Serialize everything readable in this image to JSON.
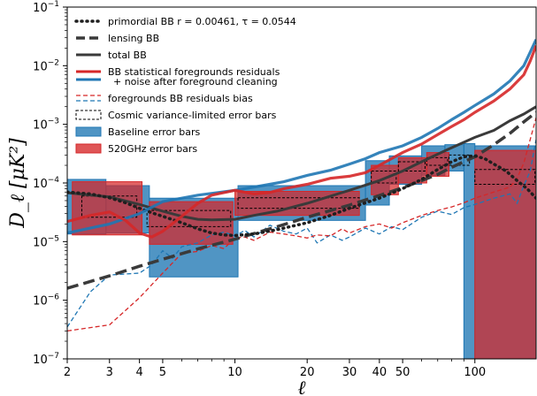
{
  "chart_data": {
    "type": "line",
    "xlabel": "ℓ",
    "ylabel": "D_ℓ [μK²]",
    "xscale": "log",
    "yscale": "log",
    "xlim": [
      2,
      180
    ],
    "ylim": [
      1e-07,
      0.1
    ],
    "x_ticks": [
      {
        "v": 2,
        "label": "2"
      },
      {
        "v": 3,
        "label": "3"
      },
      {
        "v": 4,
        "label": "4"
      },
      {
        "v": 5,
        "label": "5"
      },
      {
        "v": 10,
        "label": "10"
      },
      {
        "v": 20,
        "label": "20"
      },
      {
        "v": 30,
        "label": "30"
      },
      {
        "v": 40,
        "label": "40"
      },
      {
        "v": 50,
        "label": "50"
      },
      {
        "v": 100,
        "label": "100"
      }
    ],
    "y_ticks": [
      {
        "v": 1e-07,
        "base": "10",
        "exp": "−7"
      },
      {
        "v": 1e-06,
        "base": "10",
        "exp": "−6"
      },
      {
        "v": 1e-05,
        "base": "10",
        "exp": "−5"
      },
      {
        "v": 0.0001,
        "base": "10",
        "exp": "−4"
      },
      {
        "v": 0.001,
        "base": "10",
        "exp": "−3"
      },
      {
        "v": 0.01,
        "base": "10",
        "exp": "−2"
      },
      {
        "v": 0.1,
        "base": "10",
        "exp": "−1"
      }
    ],
    "legend_position": "top-left",
    "legend": [
      {
        "label": "primordial BB r = 0.00461, τ = 0.0544",
        "style": "dotted",
        "color": "#1f1f1f"
      },
      {
        "label": "lensing BB",
        "style": "dashed-thick",
        "color": "#3a3a3a"
      },
      {
        "label": "total BB",
        "style": "solid",
        "color": "#3a3a3a"
      },
      {
        "label": "BB statistical foregrounds residuals",
        "label2": "+ noise after foreground cleaning",
        "style": "solid-pair",
        "color": "#d62728",
        "color2": "#1f77b4"
      },
      {
        "label": "foregrounds BB residuals bias",
        "style": "dashed-pair",
        "color": "#d62728",
        "color2": "#1f77b4"
      },
      {
        "label": "Cosmic variance-limited error bars",
        "style": "box-dashed",
        "color": "#000000"
      },
      {
        "label": "Baseline error bars",
        "style": "box-filled",
        "color": "#1f77b4"
      },
      {
        "label": "520GHz error bars",
        "style": "box-filled",
        "color": "#d62728"
      }
    ],
    "colors": {
      "blue": "#1f77b4",
      "red": "#d62728",
      "black": "#3a3a3a"
    },
    "series": [
      {
        "key": "primordial",
        "points": [
          [
            2,
            7e-05
          ],
          [
            2.5,
            6.5e-05
          ],
          [
            3,
            5.6e-05
          ],
          [
            3.5,
            4.6e-05
          ],
          [
            4,
            3.7e-05
          ],
          [
            4.5,
            3.1e-05
          ],
          [
            5,
            2.7e-05
          ],
          [
            6,
            2.1e-05
          ],
          [
            7,
            1.65e-05
          ],
          [
            8,
            1.4e-05
          ],
          [
            9,
            1.3e-05
          ],
          [
            10,
            1.27e-05
          ],
          [
            12,
            1.35e-05
          ],
          [
            15,
            1.6e-05
          ],
          [
            20,
            2.1e-05
          ],
          [
            25,
            2.8e-05
          ],
          [
            30,
            3.7e-05
          ],
          [
            40,
            5.5e-05
          ],
          [
            50,
            8e-05
          ],
          [
            60,
            0.000115
          ],
          [
            70,
            0.00017
          ],
          [
            80,
            0.00023
          ],
          [
            90,
            0.00028
          ],
          [
            100,
            0.00029
          ],
          [
            110,
            0.00026
          ],
          [
            120,
            0.00021
          ],
          [
            135,
            0.00016
          ],
          [
            150,
            0.00011
          ],
          [
            165,
            8e-05
          ],
          [
            180,
            5.5e-05
          ]
        ]
      },
      {
        "key": "lensing",
        "points": [
          [
            2,
            1.6e-06
          ],
          [
            3,
            2.6e-06
          ],
          [
            4,
            3.8e-06
          ],
          [
            5,
            5e-06
          ],
          [
            7,
            7.5e-06
          ],
          [
            10,
            1.1e-05
          ],
          [
            15,
            1.8e-05
          ],
          [
            20,
            2.6e-05
          ],
          [
            30,
            4.2e-05
          ],
          [
            40,
            6.1e-05
          ],
          [
            50,
            8.3e-05
          ],
          [
            60,
            0.00011
          ],
          [
            70,
            0.00014
          ],
          [
            80,
            0.000185
          ],
          [
            100,
            0.00028
          ],
          [
            120,
            0.00045
          ],
          [
            140,
            0.0007
          ],
          [
            160,
            0.0011
          ],
          [
            180,
            0.0016
          ]
        ]
      },
      {
        "key": "total",
        "points": [
          [
            2,
            6.8e-05
          ],
          [
            3,
            5.8e-05
          ],
          [
            4,
            4.3e-05
          ],
          [
            5,
            3.3e-05
          ],
          [
            6,
            2.7e-05
          ],
          [
            7,
            2.4e-05
          ],
          [
            8,
            2.35e-05
          ],
          [
            10,
            2.4e-05
          ],
          [
            12,
            2.8e-05
          ],
          [
            15,
            3.3e-05
          ],
          [
            20,
            4.5e-05
          ],
          [
            30,
            7.5e-05
          ],
          [
            40,
            0.00011
          ],
          [
            50,
            0.00016
          ],
          [
            60,
            0.00023
          ],
          [
            70,
            0.00031
          ],
          [
            80,
            0.0004
          ],
          [
            100,
            0.0006
          ],
          [
            120,
            0.00079
          ],
          [
            140,
            0.00115
          ],
          [
            160,
            0.0015
          ],
          [
            180,
            0.002
          ]
        ]
      },
      {
        "key": "stat_blue",
        "points": [
          [
            2,
            1.4e-05
          ],
          [
            3,
            2e-05
          ],
          [
            4,
            3e-05
          ],
          [
            5,
            4.8e-05
          ],
          [
            7,
            6.2e-05
          ],
          [
            10,
            7.5e-05
          ],
          [
            13,
            9e-05
          ],
          [
            16,
            0.000105
          ],
          [
            20,
            0.000135
          ],
          [
            25,
            0.000165
          ],
          [
            30,
            0.00021
          ],
          [
            35,
            0.00026
          ],
          [
            40,
            0.00033
          ],
          [
            50,
            0.00043
          ],
          [
            60,
            0.0006
          ],
          [
            70,
            0.00085
          ],
          [
            80,
            0.0012
          ],
          [
            90,
            0.0016
          ],
          [
            100,
            0.0021
          ],
          [
            120,
            0.0033
          ],
          [
            140,
            0.0055
          ],
          [
            160,
            0.01
          ],
          [
            170,
            0.017
          ],
          [
            180,
            0.028
          ]
        ]
      },
      {
        "key": "stat_red",
        "points": [
          [
            2,
            2.2e-05
          ],
          [
            2.5,
            2.8e-05
          ],
          [
            3,
            3.2e-05
          ],
          [
            3.5,
            2.3e-05
          ],
          [
            4,
            1.4e-05
          ],
          [
            4.5,
            1.2e-05
          ],
          [
            5,
            1.5e-05
          ],
          [
            6,
            2.7e-05
          ],
          [
            7,
            4.5e-05
          ],
          [
            8,
            6.2e-05
          ],
          [
            10,
            7.5e-05
          ],
          [
            12,
            6.5e-05
          ],
          [
            14,
            6.9e-05
          ],
          [
            16,
            8e-05
          ],
          [
            20,
            9.5e-05
          ],
          [
            25,
            0.00012
          ],
          [
            30,
            0.00013
          ],
          [
            35,
            0.00015
          ],
          [
            40,
            0.0002
          ],
          [
            50,
            0.00033
          ],
          [
            60,
            0.00046
          ],
          [
            70,
            0.00067
          ],
          [
            80,
            0.00092
          ],
          [
            90,
            0.0012
          ],
          [
            100,
            0.0016
          ],
          [
            120,
            0.0025
          ],
          [
            140,
            0.004
          ],
          [
            160,
            0.007
          ],
          [
            170,
            0.012
          ],
          [
            180,
            0.022
          ]
        ]
      },
      {
        "key": "bias_blue",
        "points": [
          [
            2,
            3.5e-07
          ],
          [
            2.5,
            1.4e-06
          ],
          [
            3,
            2.7e-06
          ],
          [
            4,
            2.9e-06
          ],
          [
            4.5,
            4e-06
          ],
          [
            5,
            7e-06
          ],
          [
            5.5,
            5.2e-06
          ],
          [
            6,
            8.2e-06
          ],
          [
            7,
            9.5e-06
          ],
          [
            8,
            1.3e-05
          ],
          [
            9,
            1.45e-05
          ],
          [
            10,
            1.25e-05
          ],
          [
            11,
            1.55e-05
          ],
          [
            12,
            1.2e-05
          ],
          [
            14,
            1.9e-05
          ],
          [
            16,
            1.5e-05
          ],
          [
            18,
            1.35e-05
          ],
          [
            20,
            1.7e-05
          ],
          [
            22,
            9.5e-06
          ],
          [
            25,
            1.3e-05
          ],
          [
            28,
            1.05e-05
          ],
          [
            30,
            1.2e-05
          ],
          [
            35,
            1.7e-05
          ],
          [
            40,
            1.35e-05
          ],
          [
            45,
            1.8e-05
          ],
          [
            50,
            1.6e-05
          ],
          [
            60,
            2.6e-05
          ],
          [
            70,
            3.3e-05
          ],
          [
            80,
            2.9e-05
          ],
          [
            90,
            3.8e-05
          ],
          [
            100,
            4.3e-05
          ],
          [
            120,
            5.5e-05
          ],
          [
            140,
            6.5e-05
          ],
          [
            150,
            4.5e-05
          ],
          [
            160,
            9e-05
          ],
          [
            170,
            0.00016
          ],
          [
            180,
            0.00055
          ]
        ]
      },
      {
        "key": "bias_red",
        "points": [
          [
            2,
            3e-07
          ],
          [
            3,
            3.8e-07
          ],
          [
            4,
            1.1e-06
          ],
          [
            5,
            2.9e-06
          ],
          [
            6,
            6.3e-06
          ],
          [
            7,
            6.8e-06
          ],
          [
            8,
            8.6e-06
          ],
          [
            9,
            7.6e-06
          ],
          [
            10,
            1.15e-05
          ],
          [
            11,
            1.2e-05
          ],
          [
            12,
            1.05e-05
          ],
          [
            14,
            1.45e-05
          ],
          [
            16,
            1.35e-05
          ],
          [
            18,
            1.25e-05
          ],
          [
            20,
            1.15e-05
          ],
          [
            22,
            1.3e-05
          ],
          [
            25,
            1.25e-05
          ],
          [
            28,
            1.65e-05
          ],
          [
            30,
            1.4e-05
          ],
          [
            35,
            1.8e-05
          ],
          [
            40,
            2e-05
          ],
          [
            45,
            1.7e-05
          ],
          [
            50,
            2.1e-05
          ],
          [
            60,
            2.8e-05
          ],
          [
            70,
            3.4e-05
          ],
          [
            80,
            3.9e-05
          ],
          [
            90,
            4.6e-05
          ],
          [
            100,
            5.5e-05
          ],
          [
            120,
            7e-05
          ],
          [
            140,
            8.5e-05
          ],
          [
            150,
            0.00012
          ],
          [
            160,
            0.00022
          ],
          [
            170,
            0.00055
          ],
          [
            180,
            0.0013
          ]
        ]
      }
    ],
    "baseline_boxes": [
      {
        "x0": 2,
        "x1": 2.9,
        "y0": 1.35e-05,
        "y1": 0.000115
      },
      {
        "x0": 2.9,
        "x1": 4.4,
        "y0": 1.4e-05,
        "y1": 9e-05
      },
      {
        "x0": 4.4,
        "x1": 10.3,
        "y0": 2.5e-06,
        "y1": 5.5e-05
      },
      {
        "x0": 10.3,
        "x1": 35,
        "y0": 2.3e-05,
        "y1": 9e-05
      },
      {
        "x0": 35,
        "x1": 44,
        "y0": 4.2e-05,
        "y1": 0.00024
      },
      {
        "x0": 44,
        "x1": 60,
        "y0": 9.5e-05,
        "y1": 0.00029
      },
      {
        "x0": 60,
        "x1": 75,
        "y0": 0.000135,
        "y1": 0.00043
      },
      {
        "x0": 75,
        "x1": 90,
        "y0": 0.00016,
        "y1": 0.00045
      },
      {
        "x0": 90,
        "x1": 100,
        "y0": 1e-07,
        "y1": 0.00047
      },
      {
        "x0": 100,
        "x1": 180,
        "y0": 1e-07,
        "y1": 0.00043
      }
    ],
    "freq520_boxes": [
      {
        "x0": 2.1,
        "x1": 4.1,
        "y0": 1.3e-05,
        "y1": 0.000105
      },
      {
        "x0": 4.4,
        "x1": 9.8,
        "y0": 9e-06,
        "y1": 4.8e-05
      },
      {
        "x0": 10,
        "x1": 33,
        "y0": 2.8e-05,
        "y1": 7.2e-05
      },
      {
        "x0": 37,
        "x1": 48,
        "y0": 6.3e-05,
        "y1": 0.0002
      },
      {
        "x0": 48,
        "x1": 63,
        "y0": 0.0001,
        "y1": 0.00027
      },
      {
        "x0": 63,
        "x1": 78,
        "y0": 0.00013,
        "y1": 0.00033
      },
      {
        "x0": 100,
        "x1": 180,
        "y0": 1e-07,
        "y1": 0.00036
      }
    ],
    "cv_boxes": [
      {
        "x0": 2.3,
        "x1": 3.9,
        "y0": 2.6e-05,
        "y1": 6e-05
      },
      {
        "x0": 4.3,
        "x1": 9.6,
        "y0": 1.8e-05,
        "y1": 3.4e-05
      },
      {
        "x0": 10.3,
        "x1": 33,
        "y0": 3.7e-05,
        "y1": 5.6e-05
      },
      {
        "x0": 37,
        "x1": 47,
        "y0": 0.0001,
        "y1": 0.00016
      },
      {
        "x0": 48,
        "x1": 62,
        "y0": 0.00016,
        "y1": 0.00023
      },
      {
        "x0": 63,
        "x1": 77,
        "y0": 0.0002,
        "y1": 0.00027
      },
      {
        "x0": 78,
        "x1": 95,
        "y0": 0.0002,
        "y1": 0.0003
      },
      {
        "x0": 100,
        "x1": 178,
        "y0": 9.5e-05,
        "y1": 0.00017
      }
    ]
  }
}
